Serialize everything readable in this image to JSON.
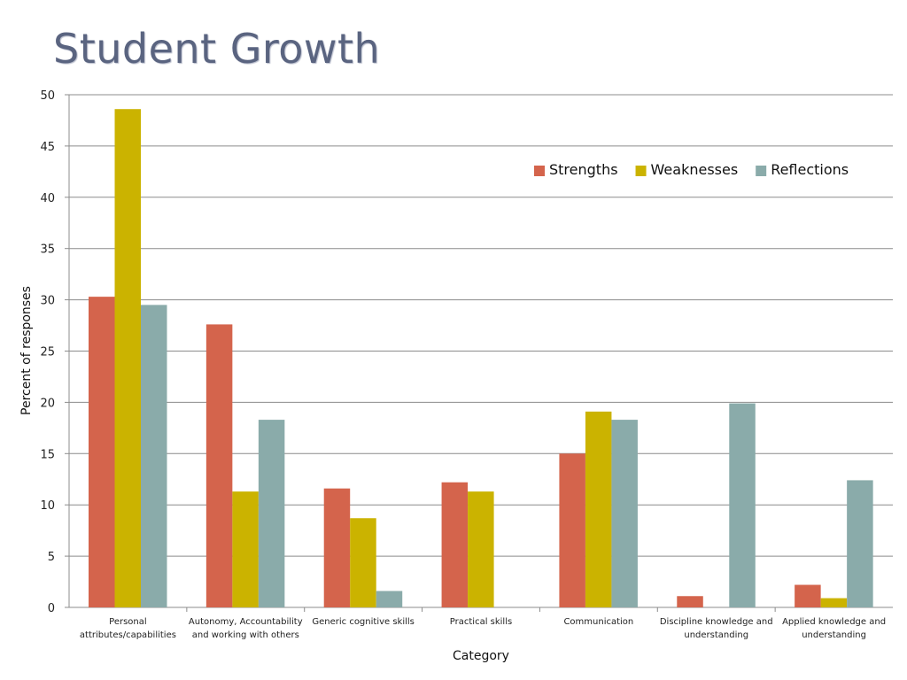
{
  "title": "Student Growth",
  "chart_data": {
    "type": "bar",
    "title": "Student Growth",
    "xlabel": "Category",
    "ylabel": "Percent of responses",
    "ylim": [
      0,
      50
    ],
    "yticks": [
      0,
      5,
      10,
      15,
      20,
      25,
      30,
      35,
      40,
      45,
      50
    ],
    "grid": true,
    "legend_position": "top-right",
    "categories": [
      [
        "Personal",
        "attributes/capabilities"
      ],
      [
        "Autonomy, Accountability",
        "and working with others"
      ],
      [
        "Generic cognitive skills"
      ],
      [
        "Practical skills"
      ],
      [
        "Communication"
      ],
      [
        "Discipline knowledge and",
        "understanding"
      ],
      [
        "Applied knowledge and",
        "understanding"
      ]
    ],
    "series": [
      {
        "name": "Strengths",
        "color": "#d4644c",
        "values": [
          30.3,
          27.6,
          11.6,
          12.2,
          15.0,
          1.1,
          2.2
        ]
      },
      {
        "name": "Weaknesses",
        "color": "#cbb300",
        "values": [
          48.6,
          11.3,
          8.7,
          11.3,
          19.1,
          0,
          0.9
        ]
      },
      {
        "name": "Reflections",
        "color": "#8aabaa",
        "values": [
          29.5,
          18.3,
          1.6,
          0,
          18.3,
          19.9,
          12.4
        ]
      }
    ]
  }
}
